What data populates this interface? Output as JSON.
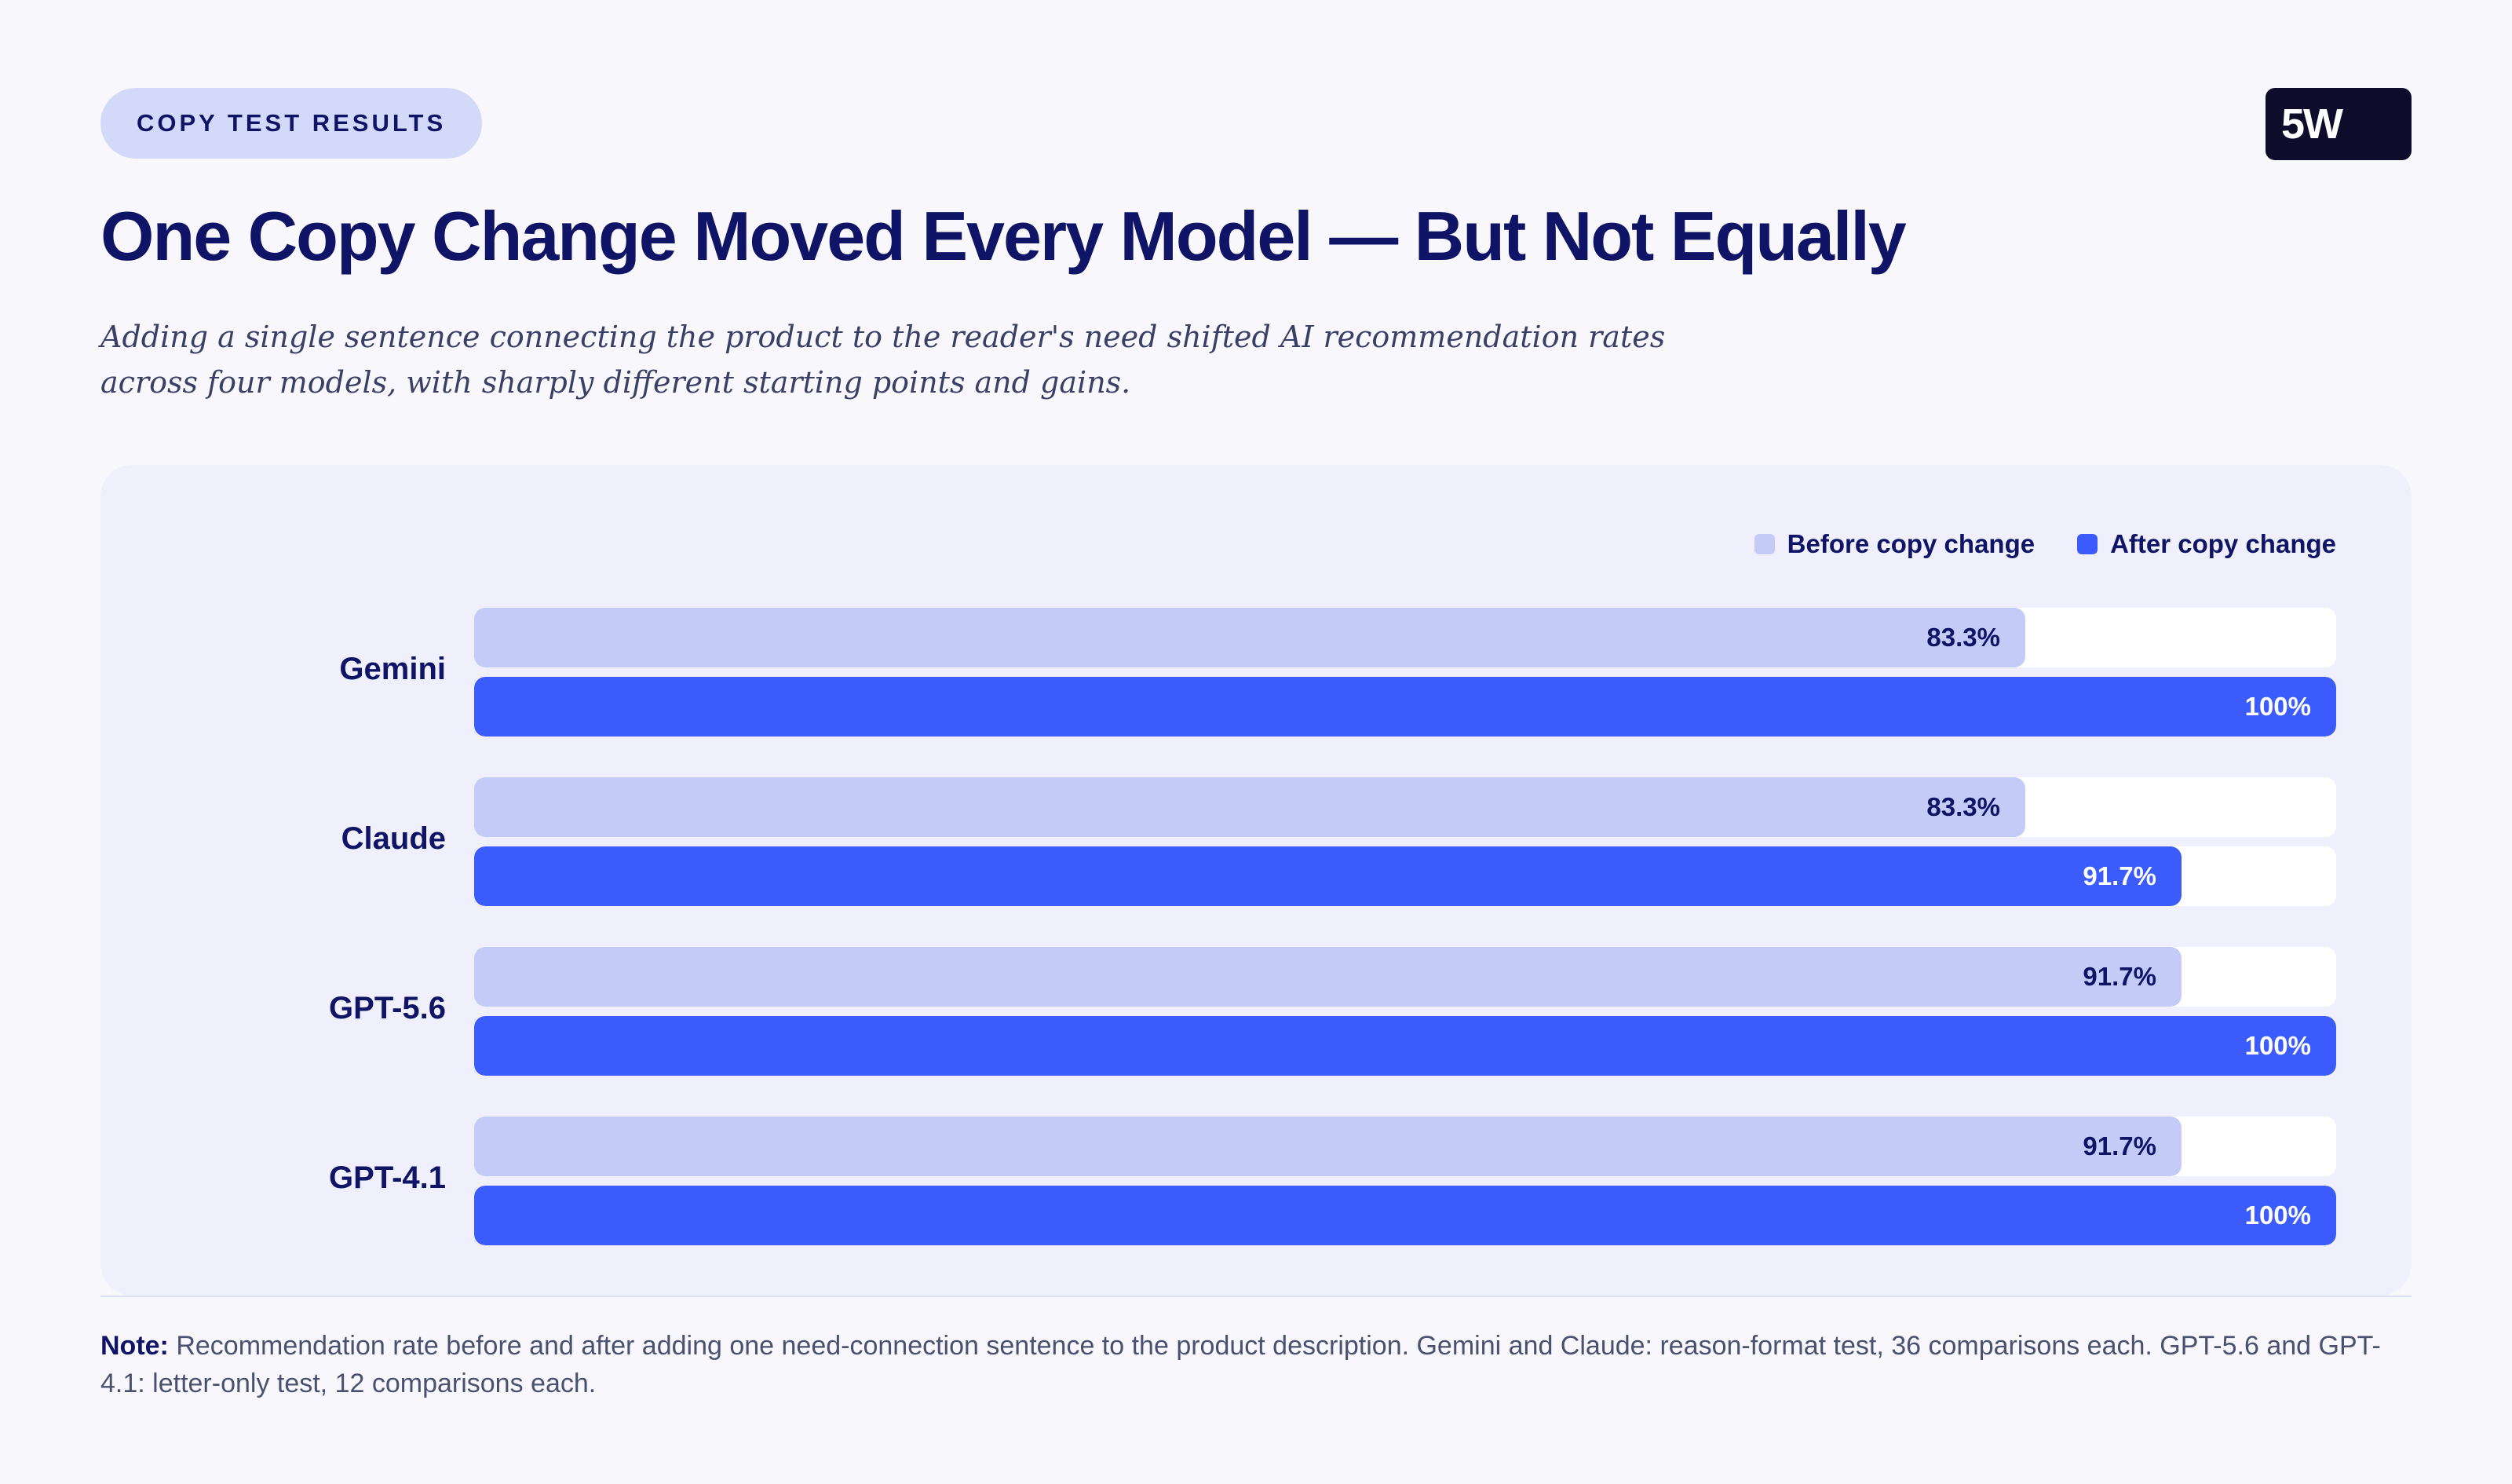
{
  "header": {
    "badge": "COPY TEST RESULTS",
    "logo": "5W",
    "title": "One Copy Change Moved Every Model — But Not Equally",
    "subtitle": "Adding a single sentence connecting the product to the reader's need shifted AI recommendation rates across four models, with sharply different starting points and gains."
  },
  "colors": {
    "before": "#c4cbf6",
    "after": "#3b5bfd",
    "text": "#0f1466"
  },
  "chart_data": {
    "type": "bar",
    "orientation": "horizontal",
    "categories": [
      "Gemini",
      "Claude",
      "GPT-5.6",
      "GPT-4.1"
    ],
    "series": [
      {
        "name": "Before copy change",
        "values": [
          83.3,
          83.3,
          91.7,
          91.7
        ],
        "labels": [
          "83.3%",
          "83.3%",
          "91.7%",
          "91.7%"
        ]
      },
      {
        "name": "After copy change",
        "values": [
          100,
          91.7,
          100,
          100
        ],
        "labels": [
          "100%",
          "91.7%",
          "100%",
          "100%"
        ]
      }
    ],
    "xlim": [
      0,
      100
    ],
    "legend_position": "top-right",
    "grid": false
  },
  "footer": {
    "note_label": "Note:",
    "note_text": " Recommendation rate before and after adding one need-connection sentence to the product description. Gemini and Claude: reason-format test, 36 comparisons each. GPT-5.6 and GPT-4.1: letter-only test, 12 comparisons each."
  }
}
